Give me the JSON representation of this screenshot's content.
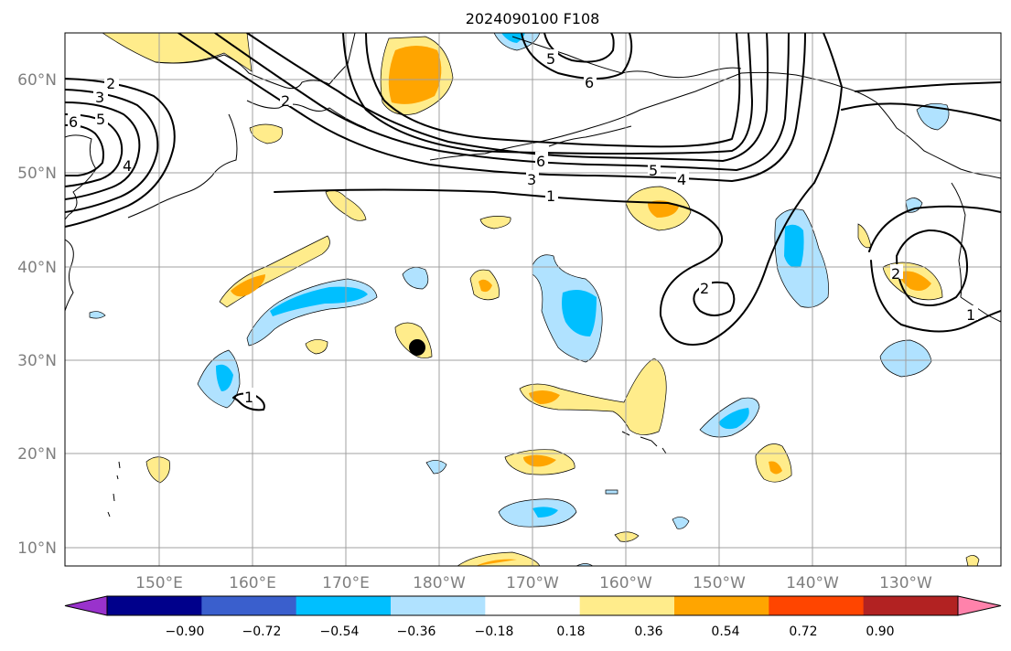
{
  "title": "2024090100 F108",
  "map": {
    "lon_ticks": [
      "150°E",
      "160°E",
      "170°E",
      "180°W",
      "170°W",
      "160°W",
      "150°W",
      "140°W",
      "130°W"
    ],
    "lat_ticks": [
      "60°N",
      "50°N",
      "40°N",
      "30°N",
      "20°N",
      "10°N"
    ],
    "contour_labels": [
      "2",
      "3",
      "6",
      "5",
      "4",
      "6",
      "5",
      "6",
      "3",
      "5",
      "4",
      "1",
      "2",
      "2",
      "1",
      "1",
      "2"
    ],
    "storm_marker": "black-circle"
  },
  "colorbar": {
    "ticks": [
      "−0.90",
      "−0.72",
      "−0.54",
      "−0.36",
      "−0.18",
      "0.18",
      "0.36",
      "0.54",
      "0.72",
      "0.90"
    ],
    "colors": [
      "#9932cc",
      "#00008b",
      "#3a5fcd",
      "#00bfff",
      "#b0e2ff",
      "#ffffff",
      "#ffec8b",
      "#ffa500",
      "#ff4500",
      "#b22222",
      "#ff82ab"
    ]
  }
}
